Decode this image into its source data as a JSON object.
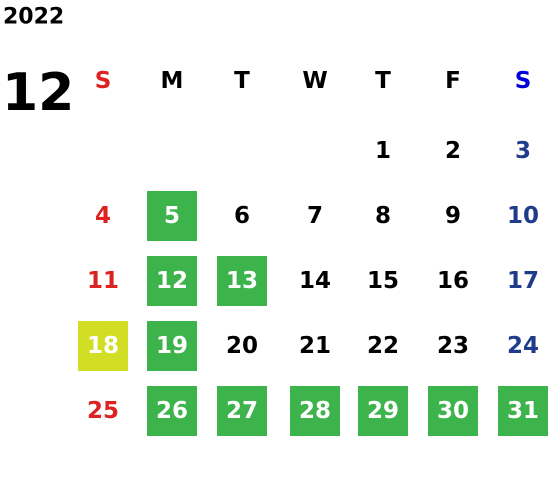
{
  "calendar": {
    "year": "2022",
    "month": "12",
    "weekdays": [
      "S",
      "M",
      "T",
      "W",
      "T",
      "F",
      "S"
    ],
    "weekday_colors": [
      "#e02020",
      "#000000",
      "#000000",
      "#000000",
      "#000000",
      "#000000",
      "#0000dd"
    ],
    "day_colors": [
      "#dd2222",
      "#000000",
      "#000000",
      "#000000",
      "#000000",
      "#000000",
      "#1f3c8c"
    ],
    "weeks": [
      [
        null,
        null,
        null,
        null,
        "1",
        "2",
        "3"
      ],
      [
        "4",
        {
          "label": "5",
          "fill": "#3cb44b"
        },
        "6",
        "7",
        "8",
        "9",
        "10"
      ],
      [
        "11",
        {
          "label": "12",
          "fill": "#3cb44b"
        },
        {
          "label": "13",
          "fill": "#3cb44b"
        },
        "14",
        "15",
        "16",
        "17"
      ],
      [
        {
          "label": "18",
          "fill": "#d2de24"
        },
        {
          "label": "19",
          "fill": "#3cb44b"
        },
        "20",
        "21",
        "22",
        "23",
        "24"
      ],
      [
        "25",
        {
          "label": "26",
          "fill": "#3cb44b"
        },
        {
          "label": "27",
          "fill": "#3cb44b"
        },
        {
          "label": "28",
          "fill": "#3cb44b"
        },
        {
          "label": "29",
          "fill": "#3cb44b"
        },
        {
          "label": "30",
          "fill": "#3cb44b"
        },
        {
          "label": "31",
          "fill": "#3cb44b"
        }
      ]
    ]
  }
}
